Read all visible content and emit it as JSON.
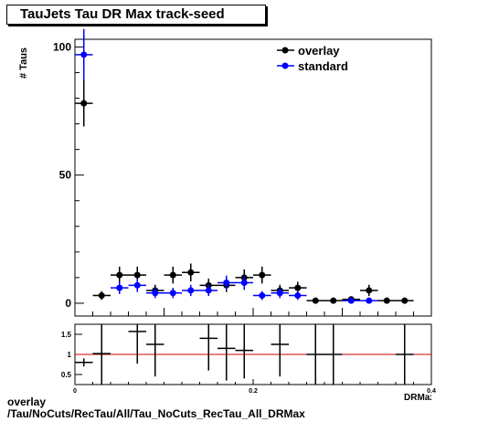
{
  "title": "TauJets Tau DR Max track-seed",
  "footer": {
    "line1": "overlay",
    "line2": "/Tau/NoCuts/RecTau/All/Tau_NoCuts_RecTau_All_DRMax"
  },
  "chart_data": [
    {
      "type": "scatter",
      "name": "main",
      "ylabel": "# Taus",
      "xlim": [
        0,
        0.4
      ],
      "ylim": [
        -5,
        103
      ],
      "y_ticks": [
        0,
        50,
        100
      ],
      "bin_width": 0.02,
      "legend": {
        "placement": "top-right",
        "entries": [
          "overlay",
          "standard"
        ]
      },
      "series": [
        {
          "name": "overlay",
          "color": "#000000",
          "x": [
            0.01,
            0.03,
            0.05,
            0.07,
            0.09,
            0.11,
            0.13,
            0.15,
            0.17,
            0.19,
            0.21,
            0.23,
            0.25,
            0.27,
            0.29,
            0.31,
            0.33,
            0.35,
            0.37
          ],
          "y": [
            78,
            3,
            11,
            11,
            5,
            11,
            12,
            7,
            7,
            10,
            11,
            5,
            6,
            1,
            1,
            1.5,
            5,
            1,
            1
          ],
          "yerr": [
            9,
            1.7,
            3.3,
            3.3,
            2.2,
            3.3,
            3.5,
            2.6,
            2.6,
            3.2,
            3.3,
            2.2,
            2.4,
            1,
            1,
            1.2,
            2.2,
            1,
            1
          ]
        },
        {
          "name": "standard",
          "color": "#0000ff",
          "x": [
            0.01,
            0.05,
            0.07,
            0.09,
            0.11,
            0.13,
            0.15,
            0.17,
            0.19,
            0.21,
            0.23,
            0.25,
            0.31,
            0.33
          ],
          "y": [
            97,
            6,
            7,
            4,
            4,
            5,
            5,
            8,
            8,
            3,
            4,
            3,
            1,
            1
          ],
          "yerr": [
            10,
            2.4,
            2.6,
            2,
            2,
            2.2,
            2.2,
            2.8,
            2.8,
            1.7,
            2,
            1.7,
            1,
            1
          ]
        }
      ]
    },
    {
      "type": "scatter",
      "name": "ratio",
      "xlim": [
        0,
        0.4
      ],
      "ylim": [
        0.25,
        1.75
      ],
      "x_ticks": [
        0,
        0.2,
        0.4
      ],
      "x_tick_labels": [
        "0",
        "0.2",
        "0.4"
      ],
      "y_ticks": [
        0.5,
        1,
        1.5
      ],
      "y_tick_labels": [
        "0.5",
        "1",
        "1.5"
      ],
      "reference_line": {
        "y": 1,
        "color": "#cc0000"
      },
      "series": [
        {
          "name": "",
          "color": "#000000",
          "x": [
            0.01,
            0.03,
            0.07,
            0.09,
            0.15,
            0.17,
            0.19,
            0.23,
            0.27,
            0.29,
            0.37
          ],
          "y": [
            0.8,
            1.02,
            1.57,
            1.25,
            1.4,
            1.15,
            1.1,
            1.25,
            1.0,
            1.0,
            1.0
          ],
          "yerr": [
            0.1,
            0.9,
            0.8,
            0.8,
            0.8,
            0.8,
            0.7,
            0.8,
            0.8,
            0.8,
            0.8
          ]
        }
      ]
    }
  ]
}
